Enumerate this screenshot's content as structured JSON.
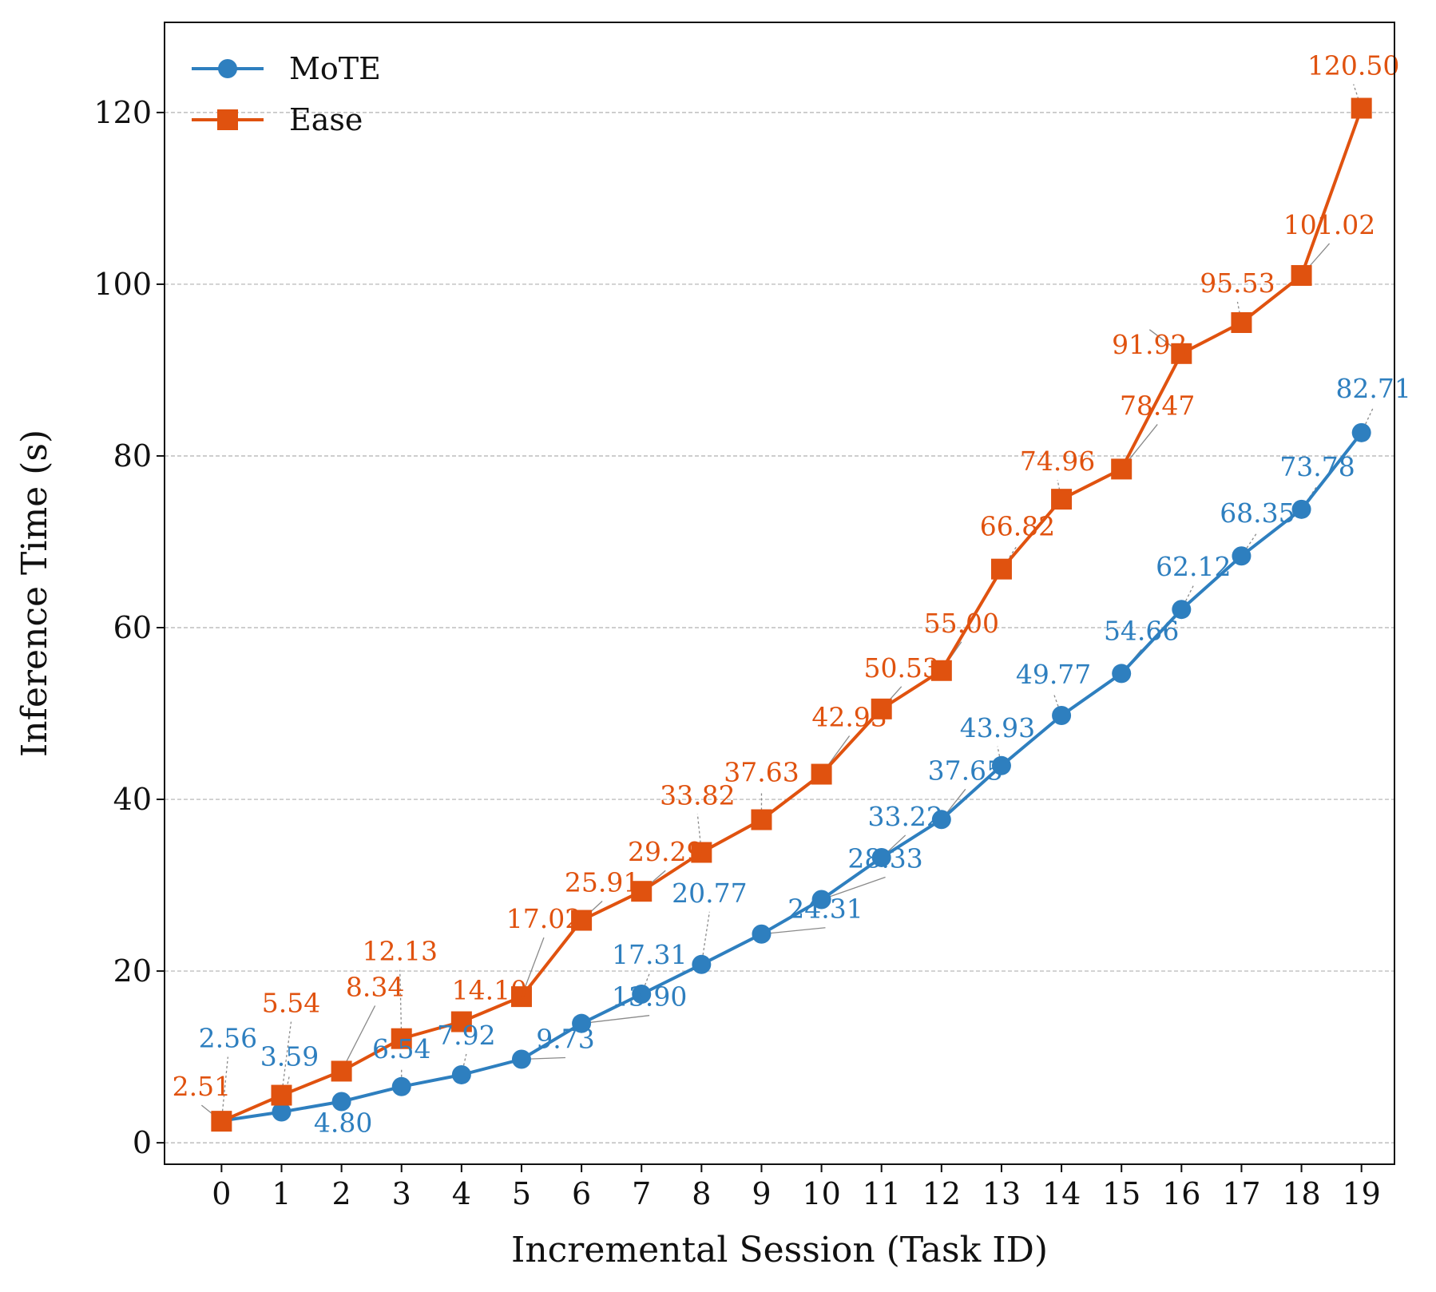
{
  "chart_data": {
    "type": "line",
    "x": [
      0,
      1,
      2,
      3,
      4,
      5,
      6,
      7,
      8,
      9,
      10,
      11,
      12,
      13,
      14,
      15,
      16,
      17,
      18,
      19
    ],
    "x_tick_labels": [
      "0",
      "1",
      "2",
      "3",
      "4",
      "5",
      "6",
      "7",
      "8",
      "9",
      "10",
      "11",
      "12",
      "13",
      "14",
      "15",
      "16",
      "17",
      "18",
      "19"
    ],
    "y_ticks": [
      0,
      20,
      40,
      60,
      80,
      100,
      120
    ],
    "ylim": [
      -2.5,
      130.5
    ],
    "xlabel": "Incremental Session (Task ID)",
    "ylabel": "Inference Time (s)",
    "grid": "horizontal dashed",
    "legend_position": "top-left",
    "series": [
      {
        "name": "MoTE",
        "color": "#2e7fbf",
        "marker": "circle",
        "values": [
          2.56,
          3.59,
          4.8,
          6.54,
          7.92,
          9.73,
          13.9,
          17.31,
          20.77,
          24.31,
          28.33,
          33.22,
          37.65,
          43.93,
          49.77,
          54.66,
          62.12,
          68.35,
          73.78,
          82.71
        ],
        "labels": [
          "2.56",
          "3.59",
          "4.80",
          "6.54",
          "7.92",
          "9.73",
          "13.90",
          "17.31",
          "20.77",
          "24.31",
          "28.33",
          "33.22",
          "37.65",
          "43.93",
          "49.77",
          "54.66",
          "62.12",
          "68.35",
          "73.78",
          "82.71"
        ]
      },
      {
        "name": "Ease",
        "color": "#e0520f",
        "marker": "square",
        "values": [
          2.51,
          5.54,
          8.34,
          12.13,
          14.1,
          17.02,
          25.91,
          29.29,
          33.82,
          37.63,
          42.93,
          50.53,
          55.0,
          66.82,
          74.96,
          78.47,
          91.92,
          95.53,
          101.02,
          120.5
        ],
        "labels": [
          "2.51",
          "5.54",
          "8.34",
          "12.13",
          "14.10",
          "17.02",
          "25.91",
          "29.29",
          "33.82",
          "37.63",
          "42.93",
          "50.53",
          "55.00",
          "66.82",
          "74.96",
          "78.47",
          "91.92",
          "95.53",
          "101.02",
          "120.50"
        ]
      }
    ]
  }
}
